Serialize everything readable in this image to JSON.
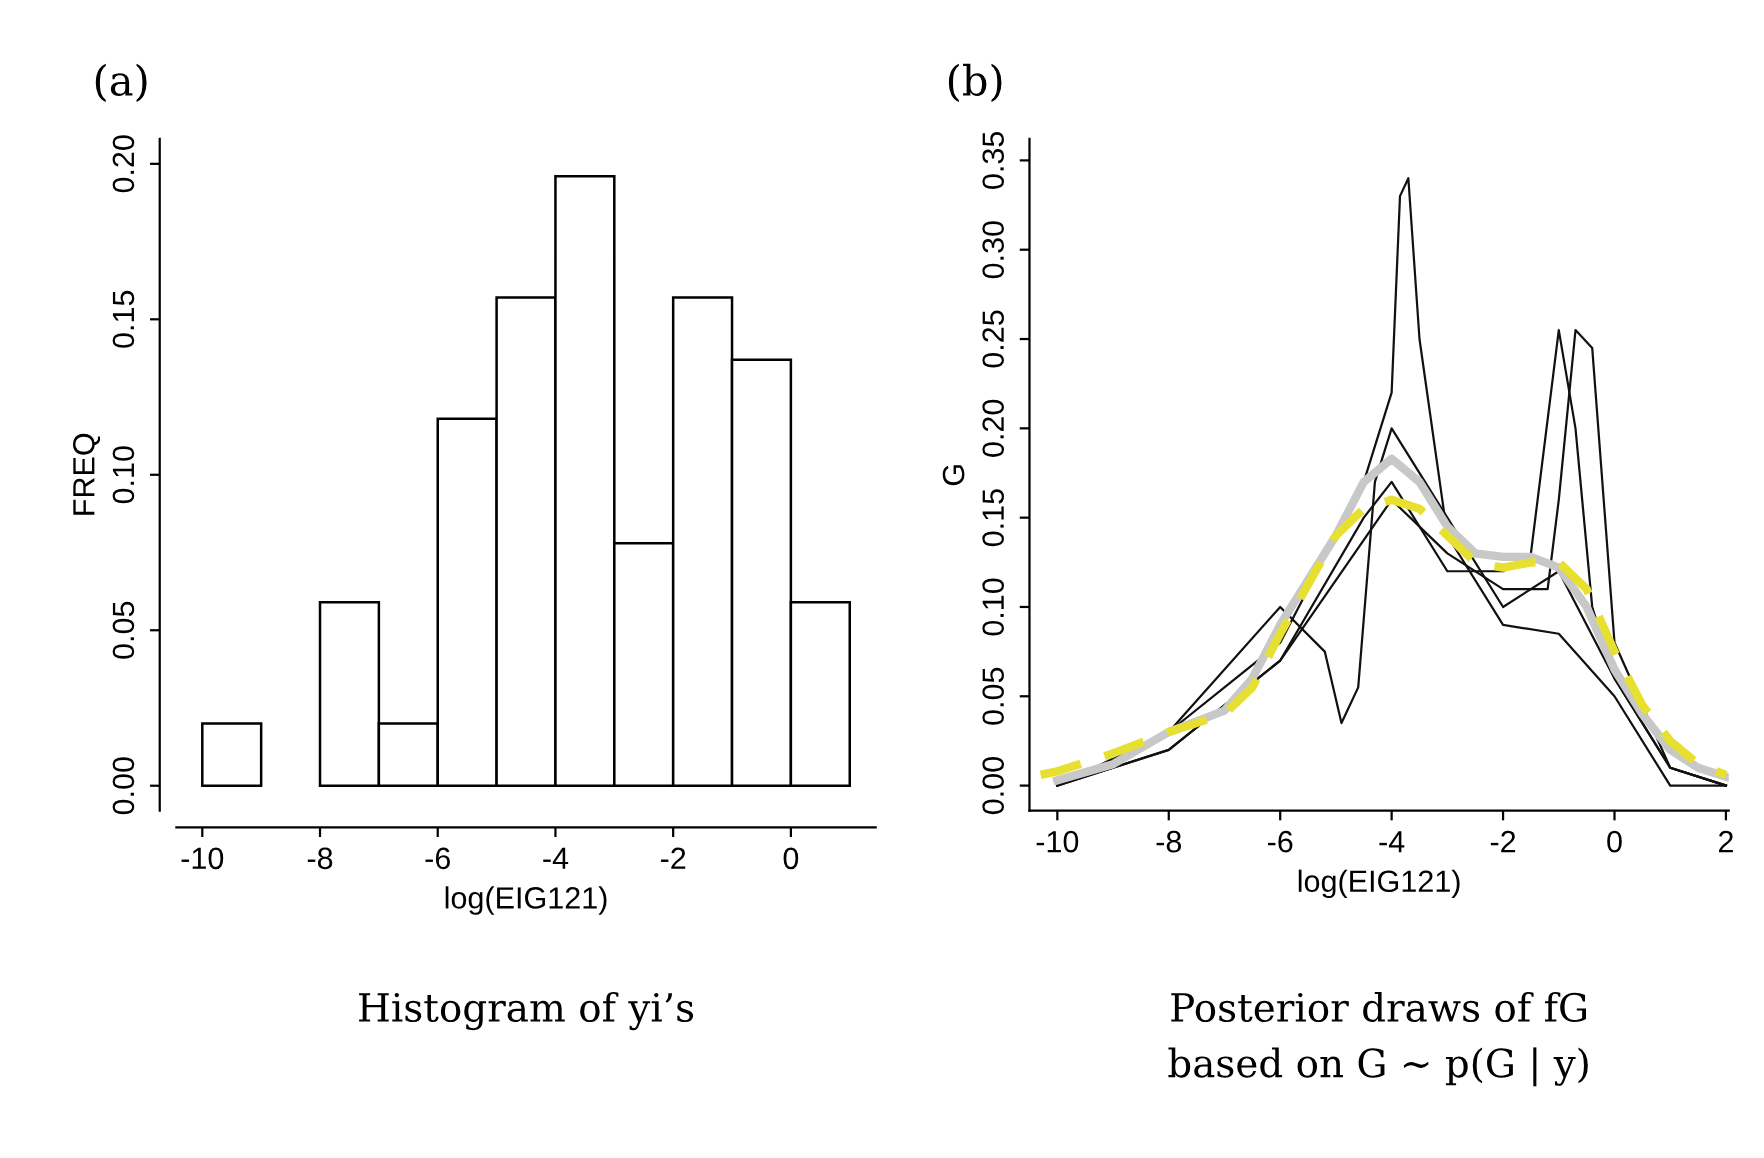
{
  "chart_data": [
    {
      "type": "histogram",
      "title": "(a)",
      "xlabel": "log(EIG121)",
      "ylabel": "FREQ",
      "bins": [
        -10,
        -9,
        -8,
        -7,
        -6,
        -5,
        -4,
        -3,
        -2,
        -1,
        0,
        1
      ],
      "values": [
        0.02,
        0,
        0.059,
        0.02,
        0.118,
        0.157,
        0.196,
        0.078,
        0.157,
        0.137,
        0.059
      ],
      "color": "#ffffff",
      "xlim": [
        -10.44,
        1.44
      ],
      "ylim": [
        -0.008,
        0.208
      ],
      "xticks": [
        -10,
        -8,
        -6,
        -4,
        -2,
        0
      ],
      "yticks": [
        {
          "value": 0,
          "label": "0.00"
        },
        {
          "value": 0.05,
          "label": "0.05"
        },
        {
          "value": 0.1,
          "label": "0.10"
        },
        {
          "value": 0.15,
          "label": "0.15"
        },
        {
          "value": 0.2,
          "label": "0.20"
        }
      ],
      "grid": false,
      "legend": false,
      "annotations": [
        "Histogram of yi’s"
      ]
    },
    {
      "type": "line",
      "title": "(b)",
      "xlabel": "log(EIG121)",
      "ylabel": "G",
      "xlim": [
        -10.5,
        2.05
      ],
      "ylim": [
        -0.014,
        0.362
      ],
      "xticks": [
        -10,
        -8,
        -6,
        -4,
        -2,
        0,
        2
      ],
      "yticks": [
        {
          "value": 0,
          "label": "0.00"
        },
        {
          "value": 0.05,
          "label": "0.05"
        },
        {
          "value": 0.1,
          "label": "0.10"
        },
        {
          "value": 0.15,
          "label": "0.15"
        },
        {
          "value": 0.2,
          "label": "0.20"
        },
        {
          "value": 0.25,
          "label": "0.25"
        },
        {
          "value": 0.3,
          "label": "0.30"
        },
        {
          "value": 0.35,
          "label": "0.35"
        }
      ],
      "grid": false,
      "legend": false,
      "annotations": [
        "Posterior draws of fG\nbased on G ∼ p(G | y)"
      ],
      "series": [
        {
          "color": "#111111",
          "line_style": "solid",
          "x": [
            -10,
            -8,
            -6,
            -4.5,
            -4,
            -3,
            -2,
            -1.5,
            -1,
            -0.7,
            -0.4,
            0,
            1,
            2
          ],
          "values": [
            0.0,
            0.02,
            0.07,
            0.15,
            0.17,
            0.12,
            0.12,
            0.13,
            0.255,
            0.2,
            0.1,
            0.06,
            0.01,
            0.0
          ]
        },
        {
          "color": "#111111",
          "line_style": "solid",
          "x": [
            -10,
            -8,
            -6,
            -4,
            -3,
            -2,
            -1.2,
            -1,
            -0.7,
            -0.4,
            0,
            1,
            2
          ],
          "values": [
            0.0,
            0.02,
            0.07,
            0.16,
            0.13,
            0.11,
            0.11,
            0.16,
            0.255,
            0.245,
            0.08,
            0.01,
            0.0
          ]
        },
        {
          "color": "#111111",
          "line_style": "solid",
          "x": [
            -10,
            -8,
            -6,
            -4.5,
            -4,
            -3.85,
            -3.7,
            -3.5,
            -3,
            -2,
            -1,
            0,
            1,
            2
          ],
          "values": [
            0.0,
            0.03,
            0.08,
            0.17,
            0.22,
            0.33,
            0.34,
            0.25,
            0.14,
            0.09,
            0.085,
            0.05,
            0.0,
            0.0
          ]
        },
        {
          "color": "#111111",
          "line_style": "solid",
          "x": [
            -10,
            -8,
            -6,
            -5.2,
            -4.9,
            -4.6,
            -4.3,
            -4,
            -3,
            -2,
            -1,
            0,
            1,
            2
          ],
          "values": [
            0.0,
            0.03,
            0.1,
            0.075,
            0.035,
            0.055,
            0.17,
            0.2,
            0.15,
            0.1,
            0.12,
            0.06,
            0.01,
            0.0
          ]
        },
        {
          "color": "#c8c8c8",
          "line_style": "solid",
          "x": [
            -10,
            -9,
            -8,
            -7.5,
            -7,
            -6.5,
            -6,
            -5,
            -4.5,
            -4,
            -3.5,
            -3,
            -2.5,
            -2,
            -1.5,
            -1,
            -0.5,
            0,
            0.5,
            1,
            1.5,
            2
          ],
          "values": [
            0.003,
            0.012,
            0.03,
            0.036,
            0.042,
            0.06,
            0.09,
            0.14,
            0.17,
            0.183,
            0.17,
            0.145,
            0.13,
            0.128,
            0.128,
            0.122,
            0.1,
            0.065,
            0.04,
            0.02,
            0.01,
            0.005
          ]
        },
        {
          "color": "#e8e030",
          "line_style": "dashed",
          "x": [
            -10.3,
            -10,
            -9,
            -8,
            -7,
            -6.5,
            -6,
            -5,
            -4.5,
            -4,
            -3.5,
            -3,
            -2.5,
            -2,
            -1.5,
            -1,
            -0.5,
            0,
            0.5,
            1,
            1.5,
            2
          ],
          "values": [
            0.006,
            0.008,
            0.018,
            0.03,
            0.04,
            0.055,
            0.085,
            0.14,
            0.155,
            0.16,
            0.155,
            0.14,
            0.125,
            0.122,
            0.125,
            0.125,
            0.11,
            0.075,
            0.045,
            0.025,
            0.012,
            0.006
          ]
        }
      ]
    }
  ]
}
